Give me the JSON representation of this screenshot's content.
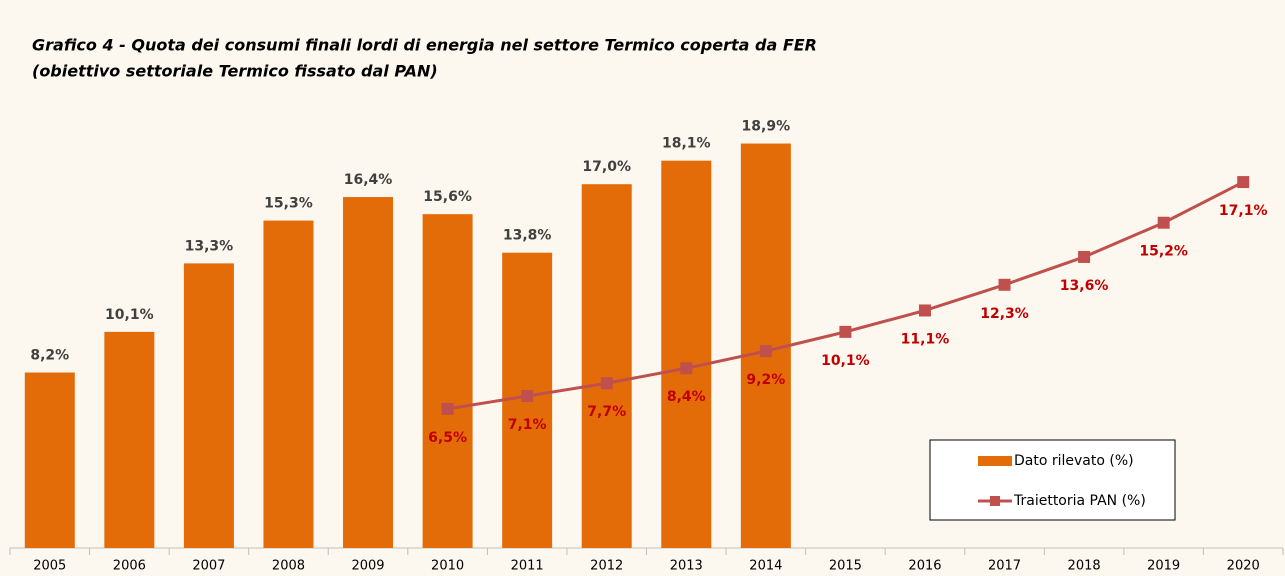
{
  "chart_data": {
    "type": "bar-line",
    "title": "Grafico 4 -  Quota dei consumi finali lordi di energia nel settore Termico coperta da FER",
    "subtitle": "(obiettivo settoriale Termico fissato dal PAN)",
    "categories": [
      "2005",
      "2006",
      "2007",
      "2008",
      "2009",
      "2010",
      "2011",
      "2012",
      "2013",
      "2014",
      "2015",
      "2016",
      "2017",
      "2018",
      "2019",
      "2020"
    ],
    "legend": "bottom-right",
    "series": [
      {
        "name": "Dato rilevato (%)",
        "type": "bar",
        "color": "#e36c09",
        "values": [
          8.2,
          10.1,
          13.3,
          15.3,
          16.4,
          15.6,
          13.8,
          17.0,
          18.1,
          18.9,
          null,
          null,
          null,
          null,
          null,
          null
        ],
        "value_labels": [
          "8,2%",
          "10,1%",
          "13,3%",
          "15,3%",
          "16,4%",
          "15,6%",
          "13,8%",
          "17,0%",
          "18,1%",
          "18,9%",
          null,
          null,
          null,
          null,
          null,
          null
        ]
      },
      {
        "name": "Traiettoria PAN (%)",
        "type": "line",
        "color": "#c0504d",
        "label_color": "#c00000",
        "values": [
          null,
          null,
          null,
          null,
          null,
          6.5,
          7.1,
          7.7,
          8.4,
          9.2,
          10.1,
          11.1,
          12.3,
          13.6,
          15.2,
          17.1
        ],
        "value_labels": [
          null,
          null,
          null,
          null,
          null,
          "6,5%",
          "7,1%",
          "7,7%",
          "8,4%",
          "9,2%",
          "10,1%",
          "11,1%",
          "12,3%",
          "13,6%",
          "15,2%",
          "17,1%"
        ]
      }
    ]
  }
}
